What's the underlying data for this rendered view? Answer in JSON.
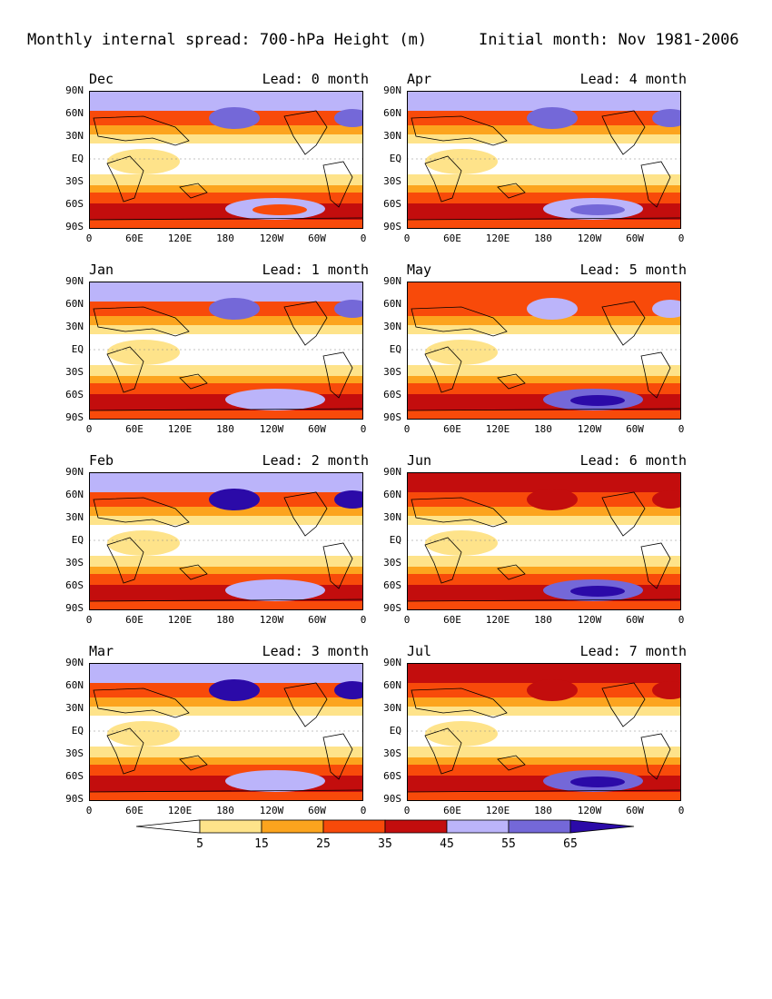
{
  "title_left": "Monthly internal spread: 700-hPa Height (m)",
  "title_right": "Initial month: Nov 1981-2006",
  "lat_labels": [
    "90N",
    "60N",
    "30N",
    "EQ",
    "30S",
    "60S",
    "90S"
  ],
  "lon_labels_a": [
    "0",
    "60E",
    "120E",
    "180",
    "120W",
    "60W",
    "0"
  ],
  "lon_labels_b": [
    "0",
    "60E",
    "120E",
    "180",
    "120W",
    "60W",
    "0"
  ],
  "panels": [
    {
      "month": "Dec",
      "lead": "Lead: 0 month"
    },
    {
      "month": "Apr",
      "lead": "Lead: 4 month"
    },
    {
      "month": "Jan",
      "lead": "Lead: 1 month"
    },
    {
      "month": "May",
      "lead": "Lead: 5 month"
    },
    {
      "month": "Feb",
      "lead": "Lead: 2 month"
    },
    {
      "month": "Jun",
      "lead": "Lead: 6 month"
    },
    {
      "month": "Mar",
      "lead": "Lead: 3 month"
    },
    {
      "month": "Jul",
      "lead": "Lead: 7 month"
    }
  ],
  "colorbar": {
    "levels": [
      "5",
      "15",
      "25",
      "35",
      "45",
      "55",
      "65"
    ],
    "colors": [
      "#ffffff",
      "#fee38a",
      "#fca41e",
      "#f84a0a",
      "#c30d0d",
      "#bbb4fa",
      "#7468d8",
      "#2b0aa8"
    ]
  }
}
